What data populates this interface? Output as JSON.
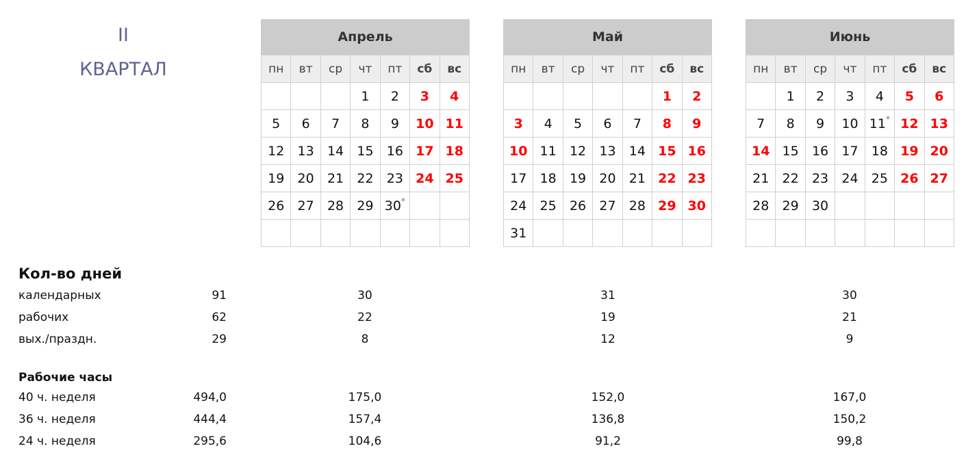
{
  "quarter": {
    "number": "II",
    "label": "КВАРТАЛ"
  },
  "weekdays": [
    "пн",
    "вт",
    "ср",
    "чт",
    "пт",
    "сб",
    "вс"
  ],
  "colors": {
    "holiday": "#ff0000",
    "header_bg": "#cccccc",
    "weekday_bg": "#eeeeee",
    "quarter_title": "#5f6294"
  },
  "months": [
    {
      "name": "Апрель",
      "weeks": [
        [
          "",
          "",
          "",
          "1",
          "2",
          "3",
          "4"
        ],
        [
          "5",
          "6",
          "7",
          "8",
          "9",
          "10",
          "11"
        ],
        [
          "12",
          "13",
          "14",
          "15",
          "16",
          "17",
          "18"
        ],
        [
          "19",
          "20",
          "21",
          "22",
          "23",
          "24",
          "25"
        ],
        [
          "26",
          "27",
          "28",
          "29",
          "30",
          "",
          ""
        ],
        [
          "",
          "",
          "",
          "",
          "",
          "",
          ""
        ]
      ],
      "red": [
        "3",
        "4",
        "10",
        "11",
        "17",
        "18",
        "24",
        "25"
      ],
      "star": [
        "30"
      ]
    },
    {
      "name": "Май",
      "weeks": [
        [
          "",
          "",
          "",
          "",
          "",
          "1",
          "2"
        ],
        [
          "3",
          "4",
          "5",
          "6",
          "7",
          "8",
          "9"
        ],
        [
          "10",
          "11",
          "12",
          "13",
          "14",
          "15",
          "16"
        ],
        [
          "17",
          "18",
          "19",
          "20",
          "21",
          "22",
          "23"
        ],
        [
          "24",
          "25",
          "26",
          "27",
          "28",
          "29",
          "30"
        ],
        [
          "31",
          "",
          "",
          "",
          "",
          "",
          ""
        ]
      ],
      "red": [
        "1",
        "2",
        "3",
        "8",
        "9",
        "10",
        "15",
        "16",
        "22",
        "23",
        "29",
        "30"
      ],
      "star": []
    },
    {
      "name": "Июнь",
      "weeks": [
        [
          "",
          "1",
          "2",
          "3",
          "4",
          "5",
          "6"
        ],
        [
          "7",
          "8",
          "9",
          "10",
          "11",
          "12",
          "13"
        ],
        [
          "14",
          "15",
          "16",
          "17",
          "18",
          "19",
          "20"
        ],
        [
          "21",
          "22",
          "23",
          "24",
          "25",
          "26",
          "27"
        ],
        [
          "28",
          "29",
          "30",
          "",
          "",
          "",
          ""
        ],
        [
          "",
          "",
          "",
          "",
          "",
          "",
          ""
        ]
      ],
      "red": [
        "5",
        "6",
        "12",
        "13",
        "14",
        "19",
        "20",
        "26",
        "27"
      ],
      "star": [
        "11"
      ]
    }
  ],
  "days": {
    "title": "Кол-во дней",
    "rows": [
      {
        "label": "календарных",
        "quarter": "91",
        "months": [
          "30",
          "31",
          "30"
        ]
      },
      {
        "label": "рабочих",
        "quarter": "62",
        "months": [
          "22",
          "19",
          "21"
        ]
      },
      {
        "label": "вых./праздн.",
        "quarter": "29",
        "months": [
          "8",
          "12",
          "9"
        ]
      }
    ]
  },
  "hours": {
    "title": "Рабочие часы",
    "rows": [
      {
        "label": "40 ч. неделя",
        "quarter": "494,0",
        "months": [
          "175,0",
          "152,0",
          "167,0"
        ]
      },
      {
        "label": "36 ч. неделя",
        "quarter": "444,4",
        "months": [
          "157,4",
          "136,8",
          "150,2"
        ]
      },
      {
        "label": "24 ч. неделя",
        "quarter": "295,6",
        "months": [
          "104,6",
          "91,2",
          "99,8"
        ]
      }
    ]
  }
}
